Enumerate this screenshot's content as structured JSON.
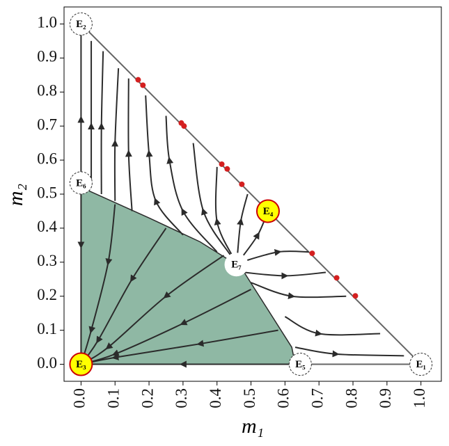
{
  "chart_data": {
    "type": "phase-portrait",
    "xlabel": "m₁",
    "ylabel": "m₂",
    "xlim": [
      -0.05,
      1.06
    ],
    "ylim": [
      -0.05,
      1.05
    ],
    "xticks": [
      {
        "value": 0,
        "label": "0.0"
      },
      {
        "value": 0.1,
        "label": "0.1"
      },
      {
        "value": 0.2,
        "label": "0.2"
      },
      {
        "value": 0.3,
        "label": "0.3"
      },
      {
        "value": 0.4,
        "label": "0.4"
      },
      {
        "value": 0.5,
        "label": "0.5"
      },
      {
        "value": 0.6,
        "label": "0.6"
      },
      {
        "value": 0.7,
        "label": "0.7"
      },
      {
        "value": 0.8,
        "label": "0.8"
      },
      {
        "value": 0.9,
        "label": "0.9"
      },
      {
        "value": 1,
        "label": "1.0"
      }
    ],
    "yticks": [
      {
        "value": 0,
        "label": "0.0"
      },
      {
        "value": 0.1,
        "label": "0.1"
      },
      {
        "value": 0.2,
        "label": "0.2"
      },
      {
        "value": 0.3,
        "label": "0.3"
      },
      {
        "value": 0.4,
        "label": "0.4"
      },
      {
        "value": 0.5,
        "label": "0.5"
      },
      {
        "value": 0.6,
        "label": "0.6"
      },
      {
        "value": 0.7,
        "label": "0.7"
      },
      {
        "value": 0.8,
        "label": "0.8"
      },
      {
        "value": 0.9,
        "label": "0.9"
      },
      {
        "value": 1,
        "label": "1.0"
      }
    ],
    "region": {
      "color": "#8fb8a4",
      "x": [
        0,
        0,
        0.2,
        0.35,
        0.43,
        0.48,
        0.62,
        0.63
      ],
      "y": [
        0,
        0.52,
        0.43,
        0.36,
        0.31,
        0.27,
        0.05,
        0
      ]
    },
    "trajectory_color": "#2b2b2b",
    "trajectories": [
      {
        "x": [
          0.03,
          0.03,
          0.03
        ],
        "y": [
          0.52,
          0.7,
          0.95
        ]
      },
      {
        "x": [
          0.06,
          0.06,
          0.065
        ],
        "y": [
          0.5,
          0.7,
          0.92
        ]
      },
      {
        "x": [
          0.1,
          0.1,
          0.11
        ],
        "y": [
          0.48,
          0.65,
          0.87
        ]
      },
      {
        "x": [
          0.15,
          0.14,
          0.14
        ],
        "y": [
          0.45,
          0.62,
          0.84
        ]
      },
      {
        "x": [
          0.3,
          0.22,
          0.2,
          0.19
        ],
        "y": [
          0.38,
          0.48,
          0.62,
          0.79
        ]
      },
      {
        "x": [
          0.4,
          0.3,
          0.26,
          0.25
        ],
        "y": [
          0.33,
          0.45,
          0.6,
          0.73
        ]
      },
      {
        "x": [
          0.44,
          0.36,
          0.33
        ],
        "y": [
          0.32,
          0.45,
          0.65
        ]
      },
      {
        "x": [
          0.45,
          0.4,
          0.4
        ],
        "y": [
          0.31,
          0.42,
          0.58
        ]
      },
      {
        "x": [
          0.46,
          0.47,
          0.49
        ],
        "y": [
          0.32,
          0.42,
          0.5
        ]
      },
      {
        "x": [
          0.47,
          0.52,
          0.55
        ],
        "y": [
          0.31,
          0.38,
          0.45
        ]
      },
      {
        "x": [
          0.47,
          0.58,
          0.67
        ],
        "y": [
          0.3,
          0.33,
          0.33
        ]
      },
      {
        "x": [
          0.48,
          0.6,
          0.72
        ],
        "y": [
          0.27,
          0.26,
          0.27
        ]
      },
      {
        "x": [
          0.5,
          0.62,
          0.78
        ],
        "y": [
          0.24,
          0.2,
          0.2
        ]
      },
      {
        "x": [
          0.6,
          0.7,
          0.88
        ],
        "y": [
          0.14,
          0.09,
          0.09
        ]
      },
      {
        "x": [
          0.63,
          0.75,
          0.95
        ],
        "y": [
          0.05,
          0.03,
          0.025
        ]
      },
      {
        "x": [
          0,
          0,
          0
        ],
        "y": [
          0.5,
          0.35,
          0.02
        ]
      },
      {
        "x": [
          0,
          0,
          0
        ],
        "y": [
          0.55,
          0.72,
          0.97
        ]
      },
      {
        "x": [
          0.1,
          0.08,
          0.03,
          0
        ],
        "y": [
          0.47,
          0.3,
          0.1,
          0
        ]
      },
      {
        "x": [
          0.25,
          0.15,
          0.05,
          0
        ],
        "y": [
          0.4,
          0.25,
          0.07,
          0
        ]
      },
      {
        "x": [
          0.42,
          0.25,
          0.08,
          0
        ],
        "y": [
          0.32,
          0.2,
          0.05,
          0
        ]
      },
      {
        "x": [
          0.5,
          0.3,
          0.1,
          0
        ],
        "y": [
          0.22,
          0.12,
          0.03,
          0
        ]
      },
      {
        "x": [
          0.58,
          0.35,
          0.1,
          0
        ],
        "y": [
          0.1,
          0.06,
          0.02,
          0
        ]
      },
      {
        "x": [
          0.62,
          0.3,
          0.02
        ],
        "y": [
          0,
          0,
          0
        ]
      }
    ],
    "boundary_color": "#666666",
    "boundary": {
      "x": [
        0,
        1,
        0.63
      ],
      "y": [
        1,
        0,
        0
      ]
    },
    "dots_color": "#d42020",
    "dots": {
      "x": [
        0.168,
        0.182,
        0.295,
        0.303,
        0.414,
        0.43,
        0.473,
        0.68,
        0.752,
        0.807
      ],
      "y": [
        0.836,
        0.82,
        0.709,
        0.7,
        0.588,
        0.574,
        0.529,
        0.326,
        0.254,
        0.201
      ]
    },
    "equilibria": [
      {
        "label": "E₁",
        "x": 1,
        "y": 0,
        "fill": "#ffffff",
        "edge": "#333333",
        "dashed": true
      },
      {
        "label": "E₂",
        "x": 0,
        "y": 1,
        "fill": "#ffffff",
        "edge": "#333333",
        "dashed": true
      },
      {
        "label": "E₃",
        "x": 0,
        "y": 0,
        "fill": "#ffff00",
        "edge": "#cc0000",
        "dashed": false
      },
      {
        "label": "E₄",
        "x": 0.55,
        "y": 0.45,
        "fill": "#ffff00",
        "edge": "#cc0000",
        "dashed": false
      },
      {
        "label": "E₅",
        "x": 0.645,
        "y": 0,
        "fill": "#ffffff",
        "edge": "#333333",
        "dashed": true
      },
      {
        "label": "E₆",
        "x": 0,
        "y": 0.533,
        "fill": "#ffffff",
        "edge": "#333333",
        "dashed": true
      },
      {
        "label": "E₇",
        "x": 0.457,
        "y": 0.293,
        "fill": "#ffffff",
        "edge": "#ffffff",
        "dashed": false
      }
    ]
  }
}
